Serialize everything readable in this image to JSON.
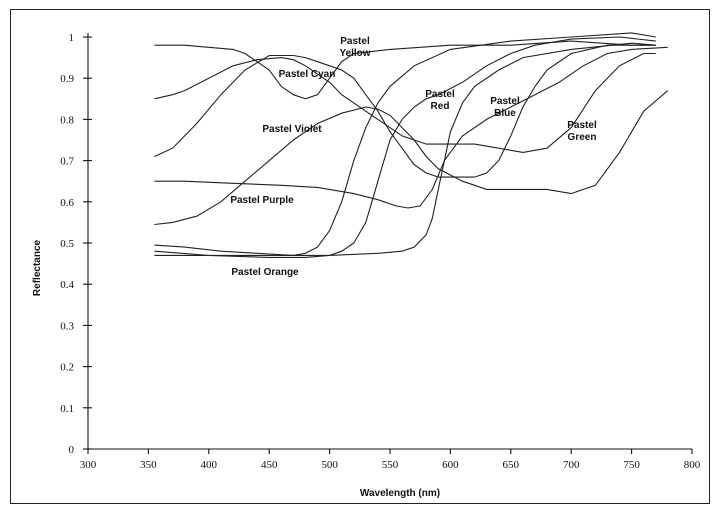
{
  "chart_data": {
    "type": "line",
    "title": "",
    "xlabel": "Wavelength (nm)",
    "ylabel": "Reflectance",
    "xlim": [
      300,
      800
    ],
    "ylim": [
      0,
      1
    ],
    "x_ticks": [
      "300",
      "350",
      "400",
      "450",
      "500",
      "550",
      "600",
      "650",
      "700",
      "750",
      "800"
    ],
    "y_ticks": [
      "0",
      "0.1",
      "0.2",
      "0.3",
      "0.4",
      "0.5",
      "0.6",
      "0.7",
      "0.8",
      "0.9",
      "1"
    ],
    "grid": false,
    "legend": "none (curves labeled directly)",
    "series": [
      {
        "name": "Pastel Yellow",
        "label_lines": [
          "Pastel",
          "Yellow"
        ],
        "points": [
          [
            355,
            0.98
          ],
          [
            380,
            0.98
          ],
          [
            400,
            0.975
          ],
          [
            420,
            0.97
          ],
          [
            430,
            0.96
          ],
          [
            440,
            0.94
          ],
          [
            450,
            0.92
          ],
          [
            460,
            0.88
          ],
          [
            470,
            0.86
          ],
          [
            480,
            0.85
          ],
          [
            490,
            0.86
          ],
          [
            500,
            0.9
          ],
          [
            510,
            0.94
          ],
          [
            520,
            0.96
          ],
          [
            550,
            0.97
          ],
          [
            600,
            0.98
          ],
          [
            650,
            0.98
          ],
          [
            700,
            0.99
          ],
          [
            750,
            0.98
          ],
          [
            770,
            0.98
          ]
        ]
      },
      {
        "name": "Pastel Cyan",
        "label_lines": [
          "Pastel Cyan"
        ],
        "points": [
          [
            355,
            0.85
          ],
          [
            370,
            0.86
          ],
          [
            380,
            0.87
          ],
          [
            400,
            0.9
          ],
          [
            420,
            0.93
          ],
          [
            440,
            0.945
          ],
          [
            460,
            0.95
          ],
          [
            470,
            0.945
          ],
          [
            480,
            0.93
          ],
          [
            490,
            0.91
          ],
          [
            500,
            0.89
          ],
          [
            510,
            0.86
          ],
          [
            520,
            0.84
          ],
          [
            530,
            0.82
          ],
          [
            540,
            0.8
          ],
          [
            550,
            0.78
          ],
          [
            560,
            0.76
          ],
          [
            570,
            0.75
          ],
          [
            580,
            0.74
          ],
          [
            590,
            0.74
          ],
          [
            600,
            0.74
          ],
          [
            620,
            0.74
          ],
          [
            640,
            0.73
          ],
          [
            660,
            0.72
          ],
          [
            680,
            0.73
          ],
          [
            700,
            0.78
          ],
          [
            720,
            0.87
          ],
          [
            740,
            0.93
          ],
          [
            760,
            0.96
          ],
          [
            770,
            0.96
          ]
        ]
      },
      {
        "name": "Pastel Violet",
        "label_lines": [
          "Pastel Violet"
        ],
        "points": [
          [
            355,
            0.71
          ],
          [
            370,
            0.73
          ],
          [
            390,
            0.79
          ],
          [
            410,
            0.86
          ],
          [
            430,
            0.92
          ],
          [
            450,
            0.955
          ],
          [
            470,
            0.955
          ],
          [
            480,
            0.95
          ],
          [
            490,
            0.94
          ],
          [
            500,
            0.93
          ],
          [
            510,
            0.92
          ],
          [
            520,
            0.9
          ],
          [
            530,
            0.86
          ],
          [
            540,
            0.82
          ],
          [
            550,
            0.77
          ],
          [
            560,
            0.73
          ],
          [
            570,
            0.69
          ],
          [
            580,
            0.67
          ],
          [
            590,
            0.66
          ],
          [
            600,
            0.66
          ],
          [
            610,
            0.66
          ],
          [
            620,
            0.66
          ],
          [
            630,
            0.67
          ],
          [
            640,
            0.7
          ],
          [
            650,
            0.76
          ],
          [
            660,
            0.83
          ],
          [
            670,
            0.88
          ],
          [
            680,
            0.92
          ],
          [
            700,
            0.96
          ],
          [
            730,
            0.98
          ],
          [
            770,
            0.98
          ]
        ]
      },
      {
        "name": "Pastel Purple",
        "label_lines": [
          "Pastel Purple"
        ],
        "points": [
          [
            355,
            0.545
          ],
          [
            370,
            0.55
          ],
          [
            390,
            0.565
          ],
          [
            410,
            0.6
          ],
          [
            430,
            0.65
          ],
          [
            450,
            0.7
          ],
          [
            470,
            0.75
          ],
          [
            490,
            0.79
          ],
          [
            510,
            0.815
          ],
          [
            530,
            0.83
          ],
          [
            540,
            0.825
          ],
          [
            550,
            0.81
          ],
          [
            560,
            0.78
          ],
          [
            570,
            0.75
          ],
          [
            580,
            0.71
          ],
          [
            590,
            0.68
          ],
          [
            600,
            0.665
          ],
          [
            610,
            0.65
          ],
          [
            620,
            0.64
          ],
          [
            630,
            0.63
          ],
          [
            640,
            0.63
          ],
          [
            660,
            0.63
          ],
          [
            680,
            0.63
          ],
          [
            700,
            0.62
          ],
          [
            720,
            0.64
          ],
          [
            740,
            0.72
          ],
          [
            760,
            0.82
          ],
          [
            780,
            0.87
          ]
        ]
      },
      {
        "name": "Pastel Red",
        "label_lines": [
          "Pastel",
          "Red"
        ],
        "points": [
          [
            355,
            0.47
          ],
          [
            400,
            0.47
          ],
          [
            450,
            0.47
          ],
          [
            500,
            0.47
          ],
          [
            540,
            0.475
          ],
          [
            560,
            0.48
          ],
          [
            570,
            0.49
          ],
          [
            580,
            0.52
          ],
          [
            585,
            0.56
          ],
          [
            590,
            0.63
          ],
          [
            595,
            0.7
          ],
          [
            600,
            0.77
          ],
          [
            610,
            0.84
          ],
          [
            620,
            0.88
          ],
          [
            640,
            0.92
          ],
          [
            660,
            0.95
          ],
          [
            700,
            0.97
          ],
          [
            750,
            0.985
          ],
          [
            770,
            0.98
          ]
        ]
      },
      {
        "name": "Pastel Blue",
        "label_lines": [
          "Pastel",
          "Blue"
        ],
        "points": [
          [
            355,
            0.65
          ],
          [
            380,
            0.65
          ],
          [
            420,
            0.645
          ],
          [
            460,
            0.64
          ],
          [
            490,
            0.635
          ],
          [
            520,
            0.62
          ],
          [
            540,
            0.605
          ],
          [
            555,
            0.59
          ],
          [
            565,
            0.585
          ],
          [
            575,
            0.59
          ],
          [
            585,
            0.63
          ],
          [
            595,
            0.7
          ],
          [
            610,
            0.76
          ],
          [
            630,
            0.8
          ],
          [
            650,
            0.83
          ],
          [
            670,
            0.86
          ],
          [
            690,
            0.89
          ],
          [
            710,
            0.93
          ],
          [
            730,
            0.96
          ],
          [
            750,
            0.97
          ],
          [
            780,
            0.975
          ]
        ]
      },
      {
        "name": "Pastel Green",
        "label_lines": [
          "Pastel",
          "Green"
        ],
        "points": [
          [
            355,
            0.48
          ],
          [
            400,
            0.47
          ],
          [
            450,
            0.465
          ],
          [
            480,
            0.465
          ],
          [
            500,
            0.47
          ],
          [
            510,
            0.48
          ],
          [
            520,
            0.5
          ],
          [
            530,
            0.55
          ],
          [
            540,
            0.65
          ],
          [
            550,
            0.75
          ],
          [
            560,
            0.8
          ],
          [
            570,
            0.83
          ],
          [
            580,
            0.85
          ],
          [
            590,
            0.86
          ],
          [
            600,
            0.875
          ],
          [
            610,
            0.89
          ],
          [
            630,
            0.93
          ],
          [
            650,
            0.96
          ],
          [
            670,
            0.98
          ],
          [
            700,
            0.995
          ],
          [
            740,
            1.0
          ],
          [
            770,
            0.99
          ]
        ]
      },
      {
        "name": "Pastel Orange",
        "label_lines": [
          "Pastel Orange"
        ],
        "points": [
          [
            355,
            0.495
          ],
          [
            380,
            0.49
          ],
          [
            410,
            0.48
          ],
          [
            440,
            0.475
          ],
          [
            470,
            0.47
          ],
          [
            480,
            0.475
          ],
          [
            490,
            0.49
          ],
          [
            500,
            0.53
          ],
          [
            510,
            0.6
          ],
          [
            520,
            0.7
          ],
          [
            530,
            0.78
          ],
          [
            540,
            0.84
          ],
          [
            550,
            0.88
          ],
          [
            570,
            0.93
          ],
          [
            600,
            0.97
          ],
          [
            650,
            0.99
          ],
          [
            700,
            1.0
          ],
          [
            750,
            1.01
          ],
          [
            770,
            1.0
          ]
        ]
      }
    ]
  },
  "label_positions_note": ""
}
